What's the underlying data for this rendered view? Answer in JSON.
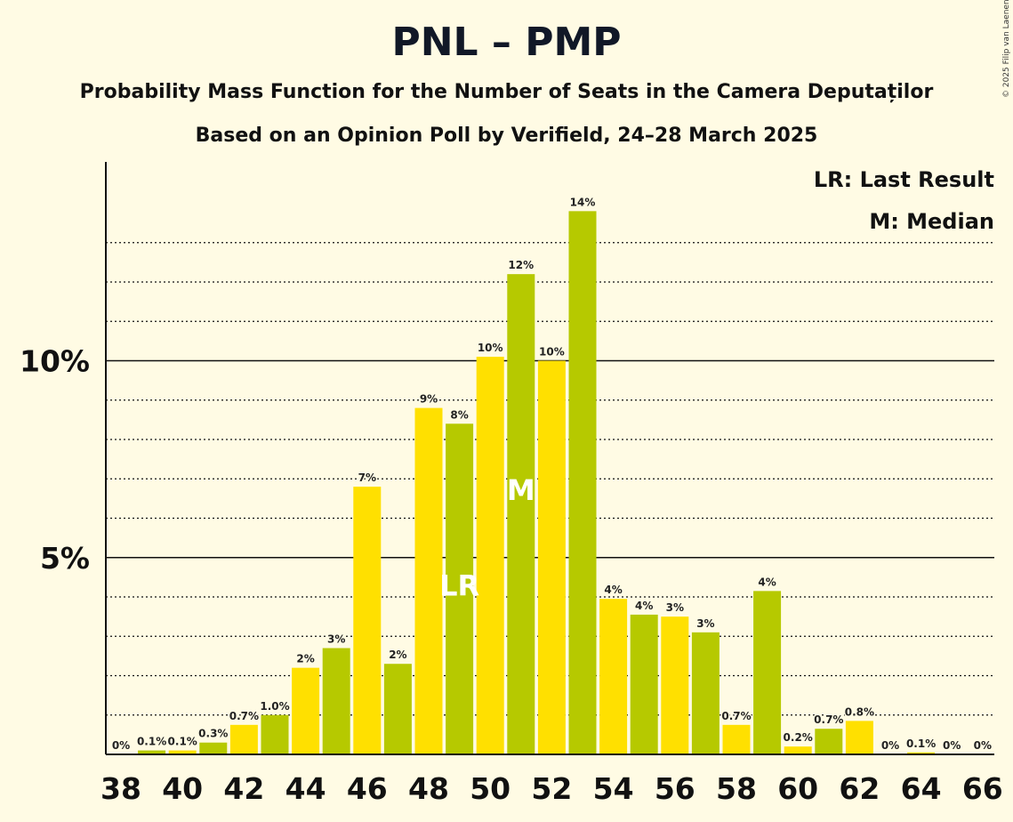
{
  "title": "PNL – PMP",
  "subtitle1": "Probability Mass Function for the Number of Seats in the Camera Deputaților",
  "subtitle2": "Based on an Opinion Poll by Verifield, 24–28 March 2025",
  "copyright": "© 2025 Filip van Laenen",
  "legend": {
    "last_result": "LR: Last Result",
    "median": "M: Median"
  },
  "colors": {
    "yellow": "#FFE000",
    "green": "#B6C900",
    "background": "#FFFBE4"
  },
  "chart_data": {
    "type": "bar",
    "title": "PNL – PMP",
    "xlabel": "",
    "ylabel": "",
    "ylim": [
      0,
      15
    ],
    "y_ticks": [
      {
        "value": 5,
        "label": "5%"
      },
      {
        "value": 10,
        "label": "10%"
      }
    ],
    "x_tick_labels": [
      "38",
      "40",
      "42",
      "44",
      "46",
      "48",
      "50",
      "52",
      "54",
      "56",
      "58",
      "60",
      "62",
      "64",
      "66"
    ],
    "categories": [
      38,
      39,
      40,
      41,
      42,
      43,
      44,
      45,
      46,
      47,
      48,
      49,
      50,
      51,
      52,
      53,
      54,
      55,
      56,
      57,
      58,
      59,
      60,
      61,
      62,
      63,
      64,
      65,
      66
    ],
    "values": [
      0,
      0.1,
      0.1,
      0.3,
      0.75,
      1.0,
      2.2,
      2.7,
      6.8,
      2.3,
      8.8,
      8.4,
      10.1,
      12.2,
      10.0,
      13.8,
      3.95,
      3.55,
      3.5,
      3.1,
      0.75,
      4.15,
      0.2,
      0.65,
      0.85,
      0,
      0.05,
      0,
      0
    ],
    "labels": [
      "0%",
      "0.1%",
      "0.1%",
      "0.3%",
      "0.7%",
      "1.0%",
      "2%",
      "3%",
      "7%",
      "2%",
      "9%",
      "8%",
      "10%",
      "12%",
      "10%",
      "14%",
      "4%",
      "4%",
      "3%",
      "3%",
      "0.7%",
      "4%",
      "0.2%",
      "0.7%",
      "0.8%",
      "0%",
      "0.1%",
      "0%",
      "0%"
    ],
    "last_result": {
      "seat": 49,
      "label": "LR"
    },
    "median": {
      "seat": 51,
      "label": "M"
    },
    "grid": true,
    "legend_position": "top-right"
  }
}
